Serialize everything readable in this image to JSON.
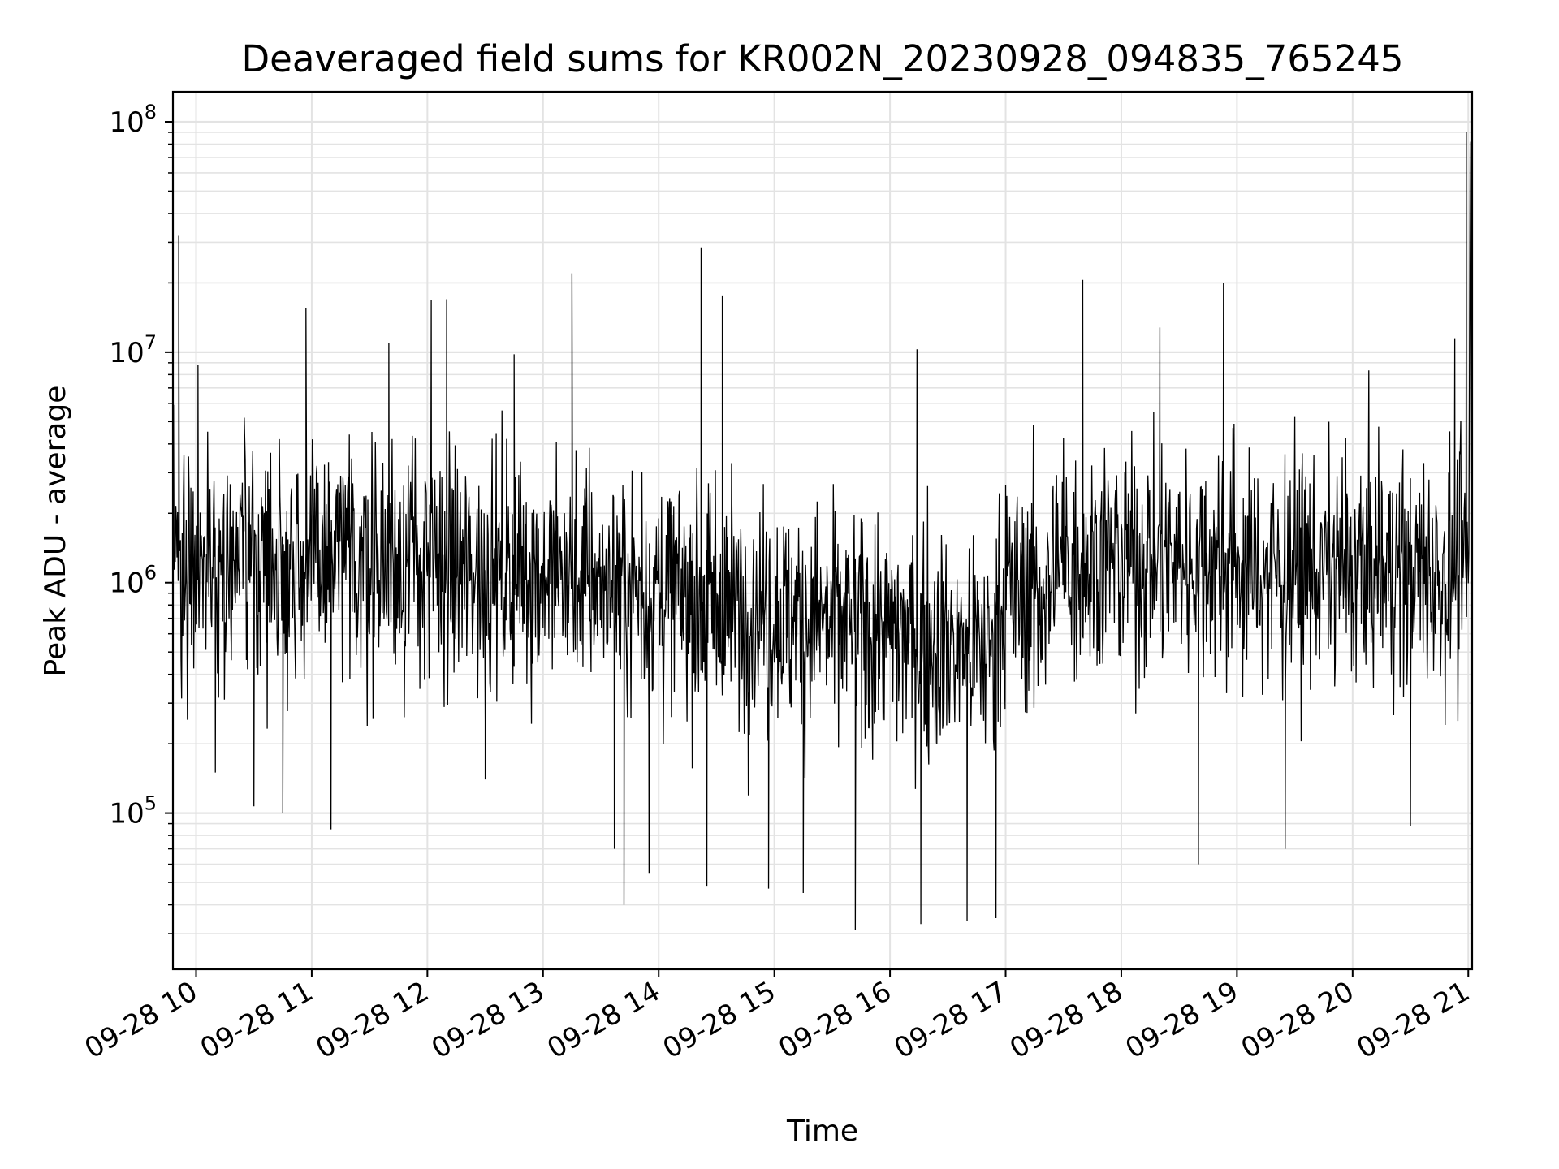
{
  "chart_data": {
    "type": "line",
    "title": "Deaveraged field sums for KR002N_20230928_094835_765245",
    "xlabel": "Time",
    "ylabel": "Peak ADU - average",
    "yscale": "log",
    "ylim": [
      21000,
      135000000
    ],
    "xlim": [
      "2023-09-28 09:48",
      "2023-09-28 21:02"
    ],
    "grid": true,
    "series_color": "#000000",
    "x_tick_labels": [
      "09-28 10",
      "09-28 11",
      "09-28 12",
      "09-28 13",
      "09-28 14",
      "09-28 15",
      "09-28 16",
      "09-28 17",
      "09-28 18",
      "09-28 19",
      "09-28 20",
      "09-28 21"
    ],
    "y_tick_labels": [
      {
        "base": "10",
        "exp": "5",
        "value": 100000
      },
      {
        "base": "10",
        "exp": "6",
        "value": 1000000
      },
      {
        "base": "10",
        "exp": "7",
        "value": 10000000
      },
      {
        "base": "10",
        "exp": "8",
        "value": 100000000
      }
    ],
    "series": [
      {
        "points": [
          [
            "2023-09-28 09:48",
            1800000
          ],
          [
            "2023-09-28 09:51",
            32000000
          ],
          [
            "2023-09-28 09:55",
            1200000
          ],
          [
            "2023-09-28 10:01",
            8800000
          ],
          [
            "2023-09-28 10:10",
            150000
          ],
          [
            "2023-09-28 10:25",
            5200000
          ],
          [
            "2023-09-28 10:30",
            107000
          ],
          [
            "2023-09-28 10:45",
            100000
          ],
          [
            "2023-09-28 10:57",
            15500000
          ],
          [
            "2023-09-28 11:10",
            85000
          ],
          [
            "2023-09-28 11:40",
            11000000
          ],
          [
            "2023-09-28 12:02",
            16800000
          ],
          [
            "2023-09-28 12:10",
            17000000
          ],
          [
            "2023-09-28 12:30",
            140000
          ],
          [
            "2023-09-28 12:45",
            9800000
          ],
          [
            "2023-09-28 13:15",
            22000000
          ],
          [
            "2023-09-28 13:37",
            70000
          ],
          [
            "2023-09-28 13:42",
            40000
          ],
          [
            "2023-09-28 13:55",
            55000
          ],
          [
            "2023-09-28 14:22",
            28500000
          ],
          [
            "2023-09-28 14:25",
            48000
          ],
          [
            "2023-09-28 14:33",
            17500000
          ],
          [
            "2023-09-28 14:57",
            47000
          ],
          [
            "2023-09-28 15:15",
            45000
          ],
          [
            "2023-09-28 15:42",
            31000
          ],
          [
            "2023-09-28 16:14",
            10300000
          ],
          [
            "2023-09-28 16:16",
            33000
          ],
          [
            "2023-09-28 16:40",
            34000
          ],
          [
            "2023-09-28 16:55",
            35000
          ],
          [
            "2023-09-28 17:40",
            20600000
          ],
          [
            "2023-09-28 18:20",
            12800000
          ],
          [
            "2023-09-28 18:40",
            60000
          ],
          [
            "2023-09-28 18:53",
            20000000
          ],
          [
            "2023-09-28 19:25",
            70000
          ],
          [
            "2023-09-28 20:30",
            88000
          ],
          [
            "2023-09-28 20:53",
            11500000
          ],
          [
            "2023-09-28 20:59",
            90000000
          ],
          [
            "2023-09-28 21:01",
            82000000
          ],
          [
            "2023-09-28 21:02",
            1400000
          ]
        ]
      }
    ]
  }
}
